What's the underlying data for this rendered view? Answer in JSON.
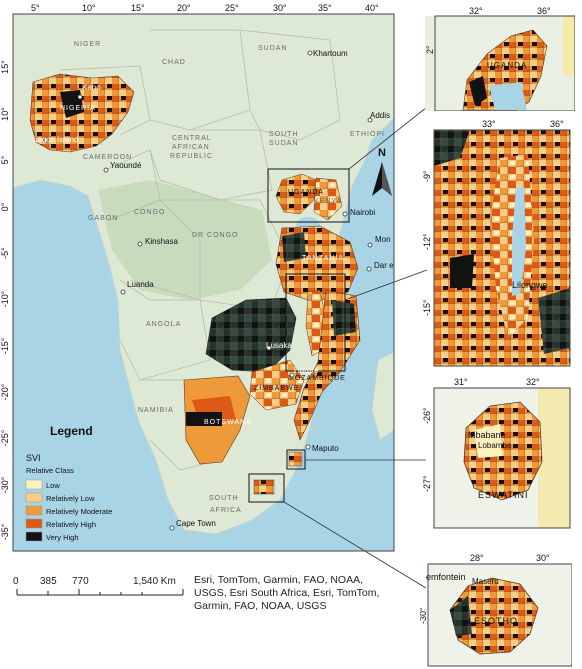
{
  "main_map": {
    "lon_ticks": [
      "5°",
      "10°",
      "15°",
      "20°",
      "25°",
      "30°",
      "35°",
      "40°"
    ],
    "lat_ticks": [
      "15°",
      "10°",
      "5°",
      "0°",
      "-5°",
      "-10°",
      "-15°",
      "-20°",
      "-25°",
      "-30°",
      "-35°"
    ],
    "countries": [
      "NIGER",
      "CHAD",
      "SUDAN",
      "CENTRAL",
      "AFRICAN",
      "REPUBLIC",
      "SOUTH",
      "SUDAN",
      "ETHIOPI",
      "CAMEROON",
      "GABON",
      "CONGO",
      "DR CONGO",
      "KENYA",
      "UGANDA",
      "TANZANIA",
      "NIGERIA",
      "ANGOLA",
      "NAMIBIA",
      "ZIMBABWE",
      "BOTSWANA",
      "MOZAMBIQUE",
      "SOUTH",
      "AFRICA"
    ],
    "cities": [
      "Kano",
      "Lagos Island",
      "Yaoundé",
      "Khartoum",
      "Addis",
      "Nairobi",
      "Kinshasa",
      "Luanda",
      "Mon",
      "Dar e",
      "Lusaka",
      "Harare",
      "Maputo",
      "Cape Town"
    ],
    "north_label": "N"
  },
  "legend": {
    "title": "Legend",
    "layer": "SVI",
    "field": "Relative Class",
    "classes": [
      {
        "label": "Low",
        "color": "#fdf2bf"
      },
      {
        "label": "Relatively Low",
        "color": "#f8cd88"
      },
      {
        "label": "Relatively Moderate",
        "color": "#ef9a3a"
      },
      {
        "label": "Relatively High",
        "color": "#dc5a16"
      },
      {
        "label": "Very High",
        "color": "#121212"
      }
    ]
  },
  "scale_bar": {
    "labels": [
      "0",
      "385",
      "770",
      "1,540 Km"
    ]
  },
  "credit": "Esri, TomTom, Garmin, FAO, NOAA, USGS, Esri South Africa, Esri, TomTom, Garmin, FAO, NOAA, USGS",
  "insets": [
    {
      "id": "uganda",
      "lon_ticks": [
        "32°",
        "36°"
      ],
      "lat_ticks": [
        "2°"
      ],
      "labels": [
        "UGANDA"
      ]
    },
    {
      "id": "malawi",
      "lon_ticks": [
        "33°",
        "36°"
      ],
      "lat_ticks": [
        "-9°",
        "-12°",
        "-15°"
      ],
      "labels": [
        "Lilongwe"
      ]
    },
    {
      "id": "eswatini",
      "lon_ticks": [
        "31°",
        "32°"
      ],
      "lat_ticks": [
        "-26°",
        "-27°"
      ],
      "labels": [
        "Mbabane",
        "Lobamba",
        "ESWATINI"
      ]
    },
    {
      "id": "lesotho",
      "lon_ticks": [
        "28°",
        "30°"
      ],
      "lat_ticks": [
        "-30°"
      ],
      "labels": [
        "emfontein",
        "Maseru",
        "LESOTHO"
      ]
    }
  ]
}
